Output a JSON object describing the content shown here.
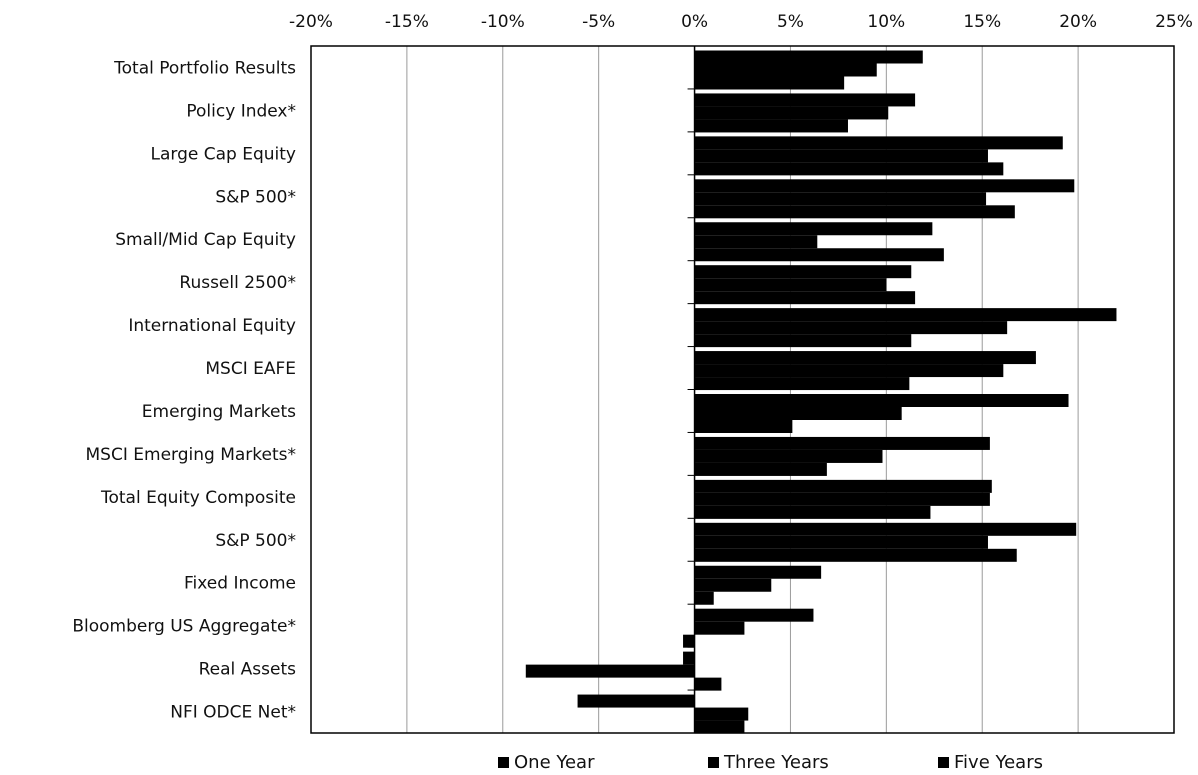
{
  "chart_data": {
    "type": "bar",
    "orientation": "horizontal",
    "title": "",
    "xlabel": "",
    "ylabel": "",
    "xlim": [
      -20,
      25
    ],
    "x_ticks": [
      -20,
      -15,
      -10,
      -5,
      0,
      5,
      10,
      15,
      20,
      25
    ],
    "x_tick_format": "percent",
    "x_axis_position": "top",
    "grid": true,
    "legend_position": "bottom",
    "bar_color": "#000000",
    "categories": [
      "Total Portfolio Results",
      "Policy Index*",
      "Large Cap Equity",
      "S&P 500*",
      "Small/Mid Cap Equity",
      "Russell 2500*",
      "International Equity",
      "MSCI EAFE",
      "Emerging Markets",
      "MSCI Emerging Markets*",
      "Total Equity Composite",
      "S&P 500*",
      "Fixed Income",
      "Bloomberg US Aggregate*",
      "Real Assets",
      "NFI ODCE Net*"
    ],
    "series": [
      {
        "name": "One Year",
        "values": [
          11.9,
          11.5,
          19.2,
          19.8,
          12.4,
          11.3,
          22.0,
          17.8,
          19.5,
          15.4,
          15.5,
          19.9,
          6.6,
          6.2,
          -0.6,
          -6.1
        ]
      },
      {
        "name": "Three Years",
        "values": [
          9.5,
          10.1,
          15.3,
          15.2,
          6.4,
          10.0,
          16.3,
          16.1,
          10.8,
          9.8,
          15.4,
          15.3,
          4.0,
          2.6,
          -8.8,
          2.8
        ]
      },
      {
        "name": "Five Years",
        "values": [
          7.8,
          8.0,
          16.1,
          16.7,
          13.0,
          11.5,
          11.3,
          11.2,
          5.1,
          6.9,
          12.3,
          16.8,
          1.0,
          -0.6,
          1.4,
          2.6
        ]
      }
    ]
  }
}
